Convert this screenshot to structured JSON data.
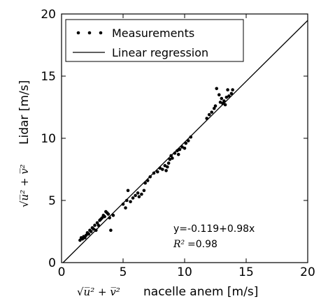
{
  "chart_data": {
    "type": "scatter",
    "xlabel_math": "√u̅² + v̅²",
    "xlabel_text": "nacelle anem [m/s]",
    "ylabel_math": "√u̅² + v̅²",
    "ylabel_text": "Lidar [m/s]",
    "xlim": [
      0,
      20
    ],
    "ylim": [
      0,
      20
    ],
    "xticks": [
      "0",
      "5",
      "10",
      "15",
      "20"
    ],
    "yticks": [
      "0",
      "5",
      "10",
      "15",
      "20"
    ],
    "grid": false,
    "legend_position": "top-left",
    "series": [
      {
        "name": "Measurements",
        "marker": "dot",
        "points": [
          [
            1.5,
            1.8
          ],
          [
            1.6,
            2.0
          ],
          [
            1.7,
            1.9
          ],
          [
            1.8,
            2.1
          ],
          [
            1.9,
            2.0
          ],
          [
            2.0,
            2.2
          ],
          [
            2.1,
            2.4
          ],
          [
            2.2,
            2.3
          ],
          [
            2.3,
            2.6
          ],
          [
            2.4,
            2.5
          ],
          [
            2.5,
            2.8
          ],
          [
            2.6,
            2.7
          ],
          [
            2.7,
            3.0
          ],
          [
            2.8,
            2.6
          ],
          [
            2.9,
            3.2
          ],
          [
            3.0,
            3.0
          ],
          [
            3.1,
            3.4
          ],
          [
            3.2,
            3.5
          ],
          [
            3.3,
            3.6
          ],
          [
            3.4,
            3.8
          ],
          [
            3.5,
            3.7
          ],
          [
            3.6,
            4.1
          ],
          [
            3.7,
            4.0
          ],
          [
            3.8,
            3.9
          ],
          [
            3.9,
            3.6
          ],
          [
            4.0,
            2.6
          ],
          [
            4.2,
            3.8
          ],
          [
            5.0,
            4.7
          ],
          [
            5.2,
            4.4
          ],
          [
            5.3,
            5.0
          ],
          [
            5.4,
            5.8
          ],
          [
            5.6,
            4.9
          ],
          [
            5.8,
            5.2
          ],
          [
            6.0,
            5.4
          ],
          [
            6.2,
            5.6
          ],
          [
            6.3,
            5.3
          ],
          [
            6.5,
            5.5
          ],
          [
            6.7,
            5.8
          ],
          [
            6.8,
            6.4
          ],
          [
            7.0,
            6.6
          ],
          [
            7.2,
            6.9
          ],
          [
            7.5,
            7.2
          ],
          [
            7.8,
            7.3
          ],
          [
            8.0,
            7.6
          ],
          [
            8.2,
            7.5
          ],
          [
            8.4,
            7.8
          ],
          [
            8.5,
            7.4
          ],
          [
            8.6,
            7.7
          ],
          [
            8.7,
            8.0
          ],
          [
            8.8,
            8.3
          ],
          [
            8.9,
            8.6
          ],
          [
            9.0,
            8.4
          ],
          [
            9.2,
            8.8
          ],
          [
            9.4,
            9.0
          ],
          [
            9.5,
            8.7
          ],
          [
            9.6,
            9.1
          ],
          [
            9.8,
            9.3
          ],
          [
            10.0,
            9.2
          ],
          [
            10.1,
            9.6
          ],
          [
            10.3,
            9.8
          ],
          [
            10.5,
            10.1
          ],
          [
            11.8,
            11.6
          ],
          [
            12.0,
            11.9
          ],
          [
            12.2,
            12.1
          ],
          [
            12.4,
            12.4
          ],
          [
            12.5,
            12.6
          ],
          [
            12.6,
            14.0
          ],
          [
            12.8,
            13.5
          ],
          [
            12.9,
            12.9
          ],
          [
            13.0,
            13.2
          ],
          [
            13.1,
            12.8
          ],
          [
            13.2,
            13.0
          ],
          [
            13.3,
            12.7
          ],
          [
            13.4,
            13.3
          ],
          [
            13.5,
            13.9
          ],
          [
            13.6,
            13.4
          ],
          [
            13.8,
            13.6
          ],
          [
            13.9,
            13.9
          ]
        ]
      },
      {
        "name": "Linear regression",
        "marker": "line",
        "intercept": -0.119,
        "slope": 0.98
      }
    ],
    "annotation": {
      "equation": "y=-0.119+0.98x",
      "r2_label": "R²",
      "r2_value": "=0.98"
    }
  }
}
